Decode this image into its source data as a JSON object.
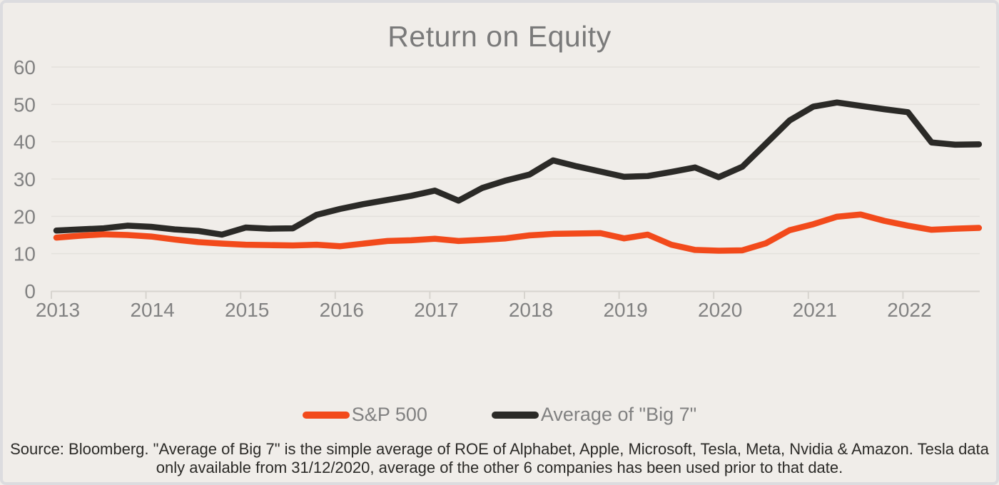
{
  "title": "Return on Equity",
  "legend": {
    "items": [
      {
        "id": "sp500",
        "label": "S&P 500",
        "color": "#f24a1b"
      },
      {
        "id": "big7",
        "label": "Average of \"Big 7\"",
        "color": "#2b2a27"
      }
    ]
  },
  "footnote": {
    "line1": "Source: Bloomberg. \"Average of Big 7\" is the simple average of ROE of Alphabet, Apple, Microsoft, Tesla, Meta, Nvidia & Amazon. Tesla data",
    "line2": "only available from 31/12/2020, average of the other 6 companies has been used prior to that date."
  },
  "colors": {
    "background": "#f0ede9",
    "frame_border": "#dcdcdf",
    "title_text": "#7a7a7a",
    "axis_label_text": "#828282",
    "gridline": "#e4e1dc",
    "axis_line": "#d7d4cf",
    "sp500_line": "#f24a1b",
    "big7_line": "#2b2a27",
    "footnote_text": "#2b2a27"
  },
  "chart_data": {
    "type": "line",
    "title": "Return on Equity",
    "xlabel": "",
    "ylabel": "",
    "ylim": [
      0,
      60
    ],
    "yticks": [
      0,
      10,
      20,
      30,
      40,
      50,
      60
    ],
    "xticks": [
      "2013",
      "2014",
      "2015",
      "2016",
      "2017",
      "2018",
      "2019",
      "2020",
      "2021",
      "2022"
    ],
    "grid": "horizontal, faint",
    "legend_position": "bottom-center",
    "x": [
      "2013 Q1",
      "2013 Q2",
      "2013 Q3",
      "2013 Q4",
      "2014 Q1",
      "2014 Q2",
      "2014 Q3",
      "2014 Q4",
      "2015 Q1",
      "2015 Q2",
      "2015 Q3",
      "2015 Q4",
      "2016 Q1",
      "2016 Q2",
      "2016 Q3",
      "2016 Q4",
      "2017 Q1",
      "2017 Q2",
      "2017 Q3",
      "2017 Q4",
      "2018 Q1",
      "2018 Q2",
      "2018 Q3",
      "2018 Q4",
      "2019 Q1",
      "2019 Q2",
      "2019 Q3",
      "2019 Q4",
      "2020 Q1",
      "2020 Q2",
      "2020 Q3",
      "2020 Q4",
      "2021 Q1",
      "2021 Q2",
      "2021 Q3",
      "2021 Q4",
      "2022 Q1",
      "2022 Q2",
      "2022 Q3",
      "2022 Q4"
    ],
    "series": [
      {
        "id": "sp500",
        "name": "S&P 500",
        "color": "#f24a1b",
        "values": [
          14.3,
          14.8,
          15.2,
          15.0,
          14.6,
          13.8,
          13.1,
          12.7,
          12.4,
          12.3,
          12.2,
          12.4,
          12.0,
          12.7,
          13.4,
          13.6,
          14.0,
          13.4,
          13.7,
          14.1,
          14.9,
          15.3,
          15.4,
          15.5,
          14.1,
          15.1,
          12.4,
          11.0,
          10.8,
          10.9,
          12.8,
          16.3,
          17.9,
          19.9,
          20.5,
          18.8,
          17.5,
          16.4,
          16.7,
          16.9
        ]
      },
      {
        "id": "big7",
        "name": "Average of \"Big 7\"",
        "color": "#2b2a27",
        "values": [
          16.2,
          16.5,
          16.8,
          17.5,
          17.2,
          16.5,
          16.1,
          15.1,
          17.0,
          16.7,
          16.8,
          20.4,
          22.0,
          23.3,
          24.4,
          25.5,
          26.9,
          24.2,
          27.6,
          29.6,
          31.2,
          35.0,
          33.4,
          32.0,
          30.6,
          30.8,
          31.9,
          33.1,
          30.5,
          33.3,
          39.5,
          45.7,
          49.4,
          50.5,
          49.6,
          48.7,
          47.9,
          39.8,
          39.2,
          39.3
        ]
      }
    ]
  }
}
